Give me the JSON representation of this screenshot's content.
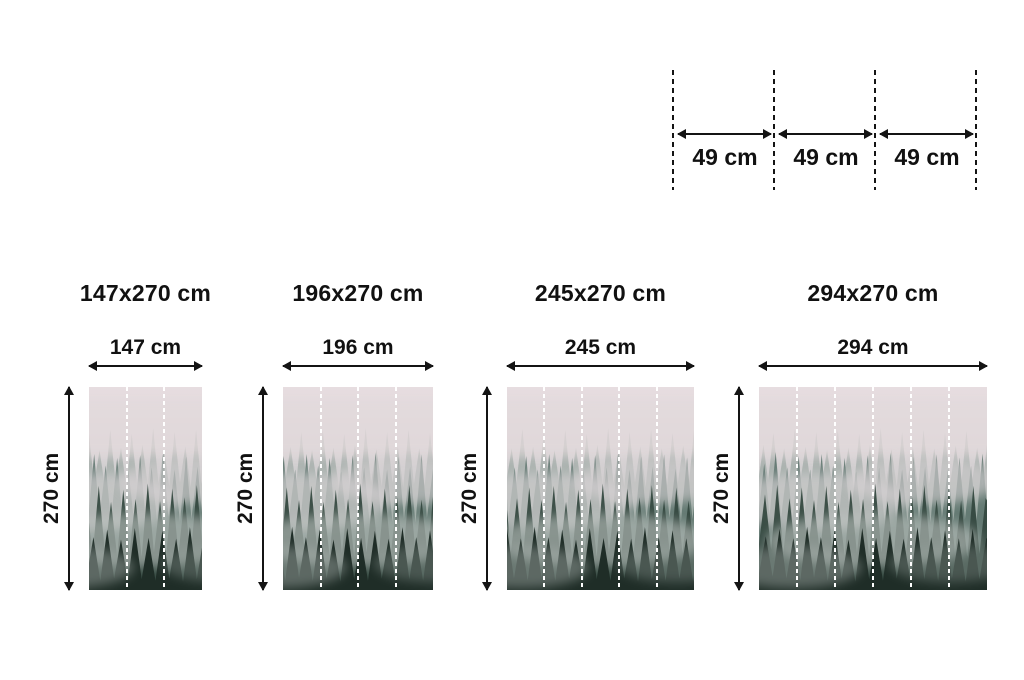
{
  "colors": {
    "ink": "#141414",
    "panel_divider": "#ffffff",
    "sky_top": "#e7dde0",
    "fog_mid": "#c9cdca",
    "trees_dark": "#1f2d27"
  },
  "panel_width_diagram": {
    "segments": [
      {
        "label": "49 cm"
      },
      {
        "label": "49 cm"
      },
      {
        "label": "49 cm"
      }
    ]
  },
  "artwork": {
    "name": "misty-forest-mural"
  },
  "products": [
    {
      "title": "147x270 cm",
      "width_label": "147 cm",
      "height_label": "270 cm",
      "panels": 3
    },
    {
      "title": "196x270 cm",
      "width_label": "196 cm",
      "height_label": "270 cm",
      "panels": 4
    },
    {
      "title": "245x270 cm",
      "width_label": "245 cm",
      "height_label": "270 cm",
      "panels": 5
    },
    {
      "title": "294x270 cm",
      "width_label": "294 cm",
      "height_label": "270 cm",
      "panels": 6
    }
  ]
}
